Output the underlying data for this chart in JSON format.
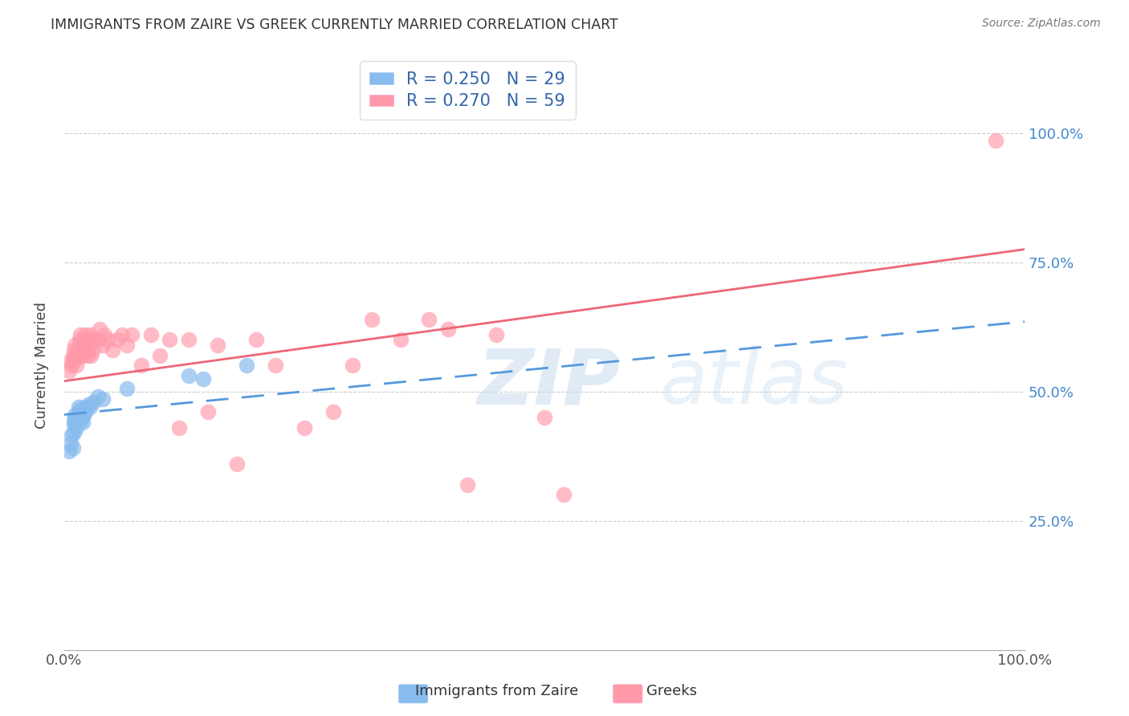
{
  "title": "IMMIGRANTS FROM ZAIRE VS GREEK CURRENTLY MARRIED CORRELATION CHART",
  "source": "Source: ZipAtlas.com",
  "ylabel": "Currently Married",
  "bottom_legend1": "Immigrants from Zaire",
  "bottom_legend2": "Greeks",
  "color_blue": "#88BBEE",
  "color_pink": "#FF99AA",
  "trendline_blue": "#5599DD",
  "trendline_pink": "#EE6677",
  "ytick_labels": [
    "25.0%",
    "50.0%",
    "75.0%",
    "100.0%"
  ],
  "ytick_positions": [
    0.25,
    0.5,
    0.75,
    1.0
  ],
  "blue_x": [
    0.005,
    0.007,
    0.008,
    0.009,
    0.01,
    0.01,
    0.01,
    0.011,
    0.012,
    0.013,
    0.014,
    0.015,
    0.015,
    0.016,
    0.017,
    0.018,
    0.019,
    0.02,
    0.022,
    0.023,
    0.025,
    0.027,
    0.03,
    0.035,
    0.04,
    0.065,
    0.13,
    0.145,
    0.19
  ],
  "blue_y": [
    0.385,
    0.4,
    0.415,
    0.39,
    0.42,
    0.435,
    0.445,
    0.455,
    0.44,
    0.43,
    0.45,
    0.46,
    0.47,
    0.45,
    0.465,
    0.445,
    0.44,
    0.455,
    0.46,
    0.47,
    0.475,
    0.47,
    0.48,
    0.49,
    0.485,
    0.505,
    0.53,
    0.525,
    0.55
  ],
  "pink_x": [
    0.005,
    0.007,
    0.008,
    0.009,
    0.01,
    0.01,
    0.011,
    0.012,
    0.013,
    0.014,
    0.015,
    0.016,
    0.017,
    0.018,
    0.019,
    0.02,
    0.021,
    0.022,
    0.023,
    0.024,
    0.025,
    0.026,
    0.027,
    0.028,
    0.03,
    0.032,
    0.035,
    0.037,
    0.04,
    0.042,
    0.045,
    0.05,
    0.055,
    0.06,
    0.065,
    0.07,
    0.08,
    0.09,
    0.1,
    0.11,
    0.12,
    0.13,
    0.15,
    0.16,
    0.18,
    0.2,
    0.22,
    0.25,
    0.28,
    0.3,
    0.32,
    0.35,
    0.38,
    0.4,
    0.42,
    0.45,
    0.5,
    0.52,
    0.97
  ],
  "pink_y": [
    0.54,
    0.56,
    0.55,
    0.57,
    0.56,
    0.58,
    0.59,
    0.57,
    0.55,
    0.565,
    0.58,
    0.6,
    0.61,
    0.59,
    0.57,
    0.58,
    0.6,
    0.61,
    0.59,
    0.57,
    0.58,
    0.6,
    0.61,
    0.57,
    0.58,
    0.6,
    0.6,
    0.62,
    0.59,
    0.61,
    0.6,
    0.58,
    0.6,
    0.61,
    0.59,
    0.61,
    0.55,
    0.61,
    0.57,
    0.6,
    0.43,
    0.6,
    0.46,
    0.59,
    0.36,
    0.6,
    0.55,
    0.43,
    0.46,
    0.55,
    0.64,
    0.6,
    0.64,
    0.62,
    0.32,
    0.61,
    0.45,
    0.3,
    0.985
  ],
  "blue_trend_x0": 0.0,
  "blue_trend_x1": 1.0,
  "blue_trend_y0": 0.455,
  "blue_trend_y1": 0.635,
  "pink_trend_x0": 0.0,
  "pink_trend_x1": 1.0,
  "pink_trend_y0": 0.52,
  "pink_trend_y1": 0.775,
  "xlim": [
    0.0,
    1.0
  ],
  "ylim": [
    0.0,
    1.1
  ],
  "legend_r1": "R = 0.250",
  "legend_n1": "N = 29",
  "legend_r2": "R = 0.270",
  "legend_n2": "N = 59"
}
